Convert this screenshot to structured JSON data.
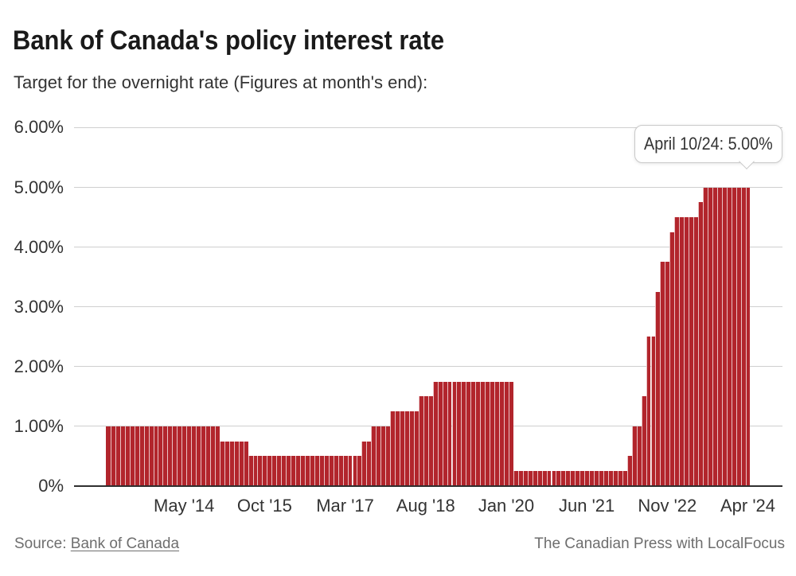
{
  "chart_data": {
    "type": "bar",
    "title": "Bank of Canada's policy interest rate",
    "subtitle": "Target for the overnight rate (Figures at month's end):",
    "categories": [
      "Jan '13",
      "Feb '13",
      "Mar '13",
      "Apr '13",
      "May '13",
      "Jun '13",
      "Jul '13",
      "Aug '13",
      "Sep '13",
      "Oct '13",
      "Nov '13",
      "Dec '13",
      "Jan '14",
      "Feb '14",
      "Mar '14",
      "Apr '14",
      "May '14",
      "Jun '14",
      "Jul '14",
      "Aug '14",
      "Sep '14",
      "Oct '14",
      "Nov '14",
      "Dec '14",
      "Jan '15",
      "Feb '15",
      "Mar '15",
      "Apr '15",
      "May '15",
      "Jun '15",
      "Jul '15",
      "Aug '15",
      "Sep '15",
      "Oct '15",
      "Nov '15",
      "Dec '15",
      "Jan '16",
      "Feb '16",
      "Mar '16",
      "Apr '16",
      "May '16",
      "Jun '16",
      "Jul '16",
      "Aug '16",
      "Sep '16",
      "Oct '16",
      "Nov '16",
      "Dec '16",
      "Jan '17",
      "Feb '17",
      "Mar '17",
      "Apr '17",
      "May '17",
      "Jun '17",
      "Jul '17",
      "Aug '17",
      "Sep '17",
      "Oct '17",
      "Nov '17",
      "Dec '17",
      "Jan '18",
      "Feb '18",
      "Mar '18",
      "Apr '18",
      "May '18",
      "Jun '18",
      "Jul '18",
      "Aug '18",
      "Sep '18",
      "Oct '18",
      "Nov '18",
      "Dec '18",
      "Jan '19",
      "Feb '19",
      "Mar '19",
      "Apr '19",
      "May '19",
      "Jun '19",
      "Jul '19",
      "Aug '19",
      "Sep '19",
      "Oct '19",
      "Nov '19",
      "Dec '19",
      "Jan '20",
      "Feb '20",
      "Mar '20",
      "Apr '20",
      "May '20",
      "Jun '20",
      "Jul '20",
      "Aug '20",
      "Sep '20",
      "Oct '20",
      "Nov '20",
      "Dec '20",
      "Jan '21",
      "Feb '21",
      "Mar '21",
      "Apr '21",
      "May '21",
      "Jun '21",
      "Jul '21",
      "Aug '21",
      "Sep '21",
      "Oct '21",
      "Nov '21",
      "Dec '21",
      "Jan '22",
      "Feb '22",
      "Mar '22",
      "Apr '22",
      "May '22",
      "Jun '22",
      "Jul '22",
      "Aug '22",
      "Sep '22",
      "Oct '22",
      "Nov '22",
      "Dec '22",
      "Jan '23",
      "Feb '23",
      "Mar '23",
      "Apr '23",
      "May '23",
      "Jun '23",
      "Jul '23",
      "Aug '23",
      "Sep '23",
      "Oct '23",
      "Nov '23",
      "Dec '23",
      "Jan '24",
      "Feb '24",
      "Mar '24",
      "Apr '24"
    ],
    "values": [
      1.0,
      1.0,
      1.0,
      1.0,
      1.0,
      1.0,
      1.0,
      1.0,
      1.0,
      1.0,
      1.0,
      1.0,
      1.0,
      1.0,
      1.0,
      1.0,
      1.0,
      1.0,
      1.0,
      1.0,
      1.0,
      1.0,
      1.0,
      1.0,
      0.75,
      0.75,
      0.75,
      0.75,
      0.75,
      0.75,
      0.5,
      0.5,
      0.5,
      0.5,
      0.5,
      0.5,
      0.5,
      0.5,
      0.5,
      0.5,
      0.5,
      0.5,
      0.5,
      0.5,
      0.5,
      0.5,
      0.5,
      0.5,
      0.5,
      0.5,
      0.5,
      0.5,
      0.5,
      0.5,
      0.75,
      0.75,
      1.0,
      1.0,
      1.0,
      1.0,
      1.25,
      1.25,
      1.25,
      1.25,
      1.25,
      1.25,
      1.5,
      1.5,
      1.5,
      1.75,
      1.75,
      1.75,
      1.75,
      1.75,
      1.75,
      1.75,
      1.75,
      1.75,
      1.75,
      1.75,
      1.75,
      1.75,
      1.75,
      1.75,
      1.75,
      1.75,
      0.25,
      0.25,
      0.25,
      0.25,
      0.25,
      0.25,
      0.25,
      0.25,
      0.25,
      0.25,
      0.25,
      0.25,
      0.25,
      0.25,
      0.25,
      0.25,
      0.25,
      0.25,
      0.25,
      0.25,
      0.25,
      0.25,
      0.25,
      0.25,
      0.5,
      1.0,
      1.0,
      1.5,
      2.5,
      2.5,
      3.25,
      3.75,
      3.75,
      4.25,
      4.5,
      4.5,
      4.5,
      4.5,
      4.5,
      4.75,
      5.0,
      5.0,
      5.0,
      5.0,
      5.0,
      5.0,
      5.0,
      5.0,
      5.0,
      5.0
    ],
    "xlabel": "",
    "ylabel": "",
    "ylim": [
      0,
      6
    ],
    "grid": "horizontal",
    "legend": "none",
    "x_ticks": [
      {
        "index": 16,
        "label": "May '14"
      },
      {
        "index": 33,
        "label": "Oct '15"
      },
      {
        "index": 50,
        "label": "Mar '17"
      },
      {
        "index": 67,
        "label": "Aug '18"
      },
      {
        "index": 84,
        "label": "Jan '20"
      },
      {
        "index": 101,
        "label": "Jun '21"
      },
      {
        "index": 118,
        "label": "Nov '22"
      },
      {
        "index": 135,
        "label": "Apr '24"
      }
    ],
    "y_ticks": [
      {
        "value": 0,
        "label": "0%"
      },
      {
        "value": 1,
        "label": "1.00%"
      },
      {
        "value": 2,
        "label": "2.00%"
      },
      {
        "value": 3,
        "label": "3.00%"
      },
      {
        "value": 4,
        "label": "4.00%"
      },
      {
        "value": 5,
        "label": "5.00%"
      },
      {
        "value": 6,
        "label": "6.00%"
      }
    ]
  },
  "tooltip": {
    "label": "April 10/24: 5.00%",
    "point_index": 135
  },
  "footer": {
    "source_label": "Source:",
    "source_link_text": "Bank of Canada",
    "credit": "The Canadian Press with LocalFocus"
  },
  "colors": {
    "bar": "#b2252c",
    "gridline": "#cfcfcf",
    "axis_line": "#2f2f2f",
    "title_text": "#1a1a1a",
    "subtitle_text": "#333333",
    "tick_text": "#333333",
    "footer_text": "#6e6e6e",
    "tooltip_border": "#c9c9c9",
    "tooltip_text": "#333333",
    "background": "#ffffff"
  }
}
